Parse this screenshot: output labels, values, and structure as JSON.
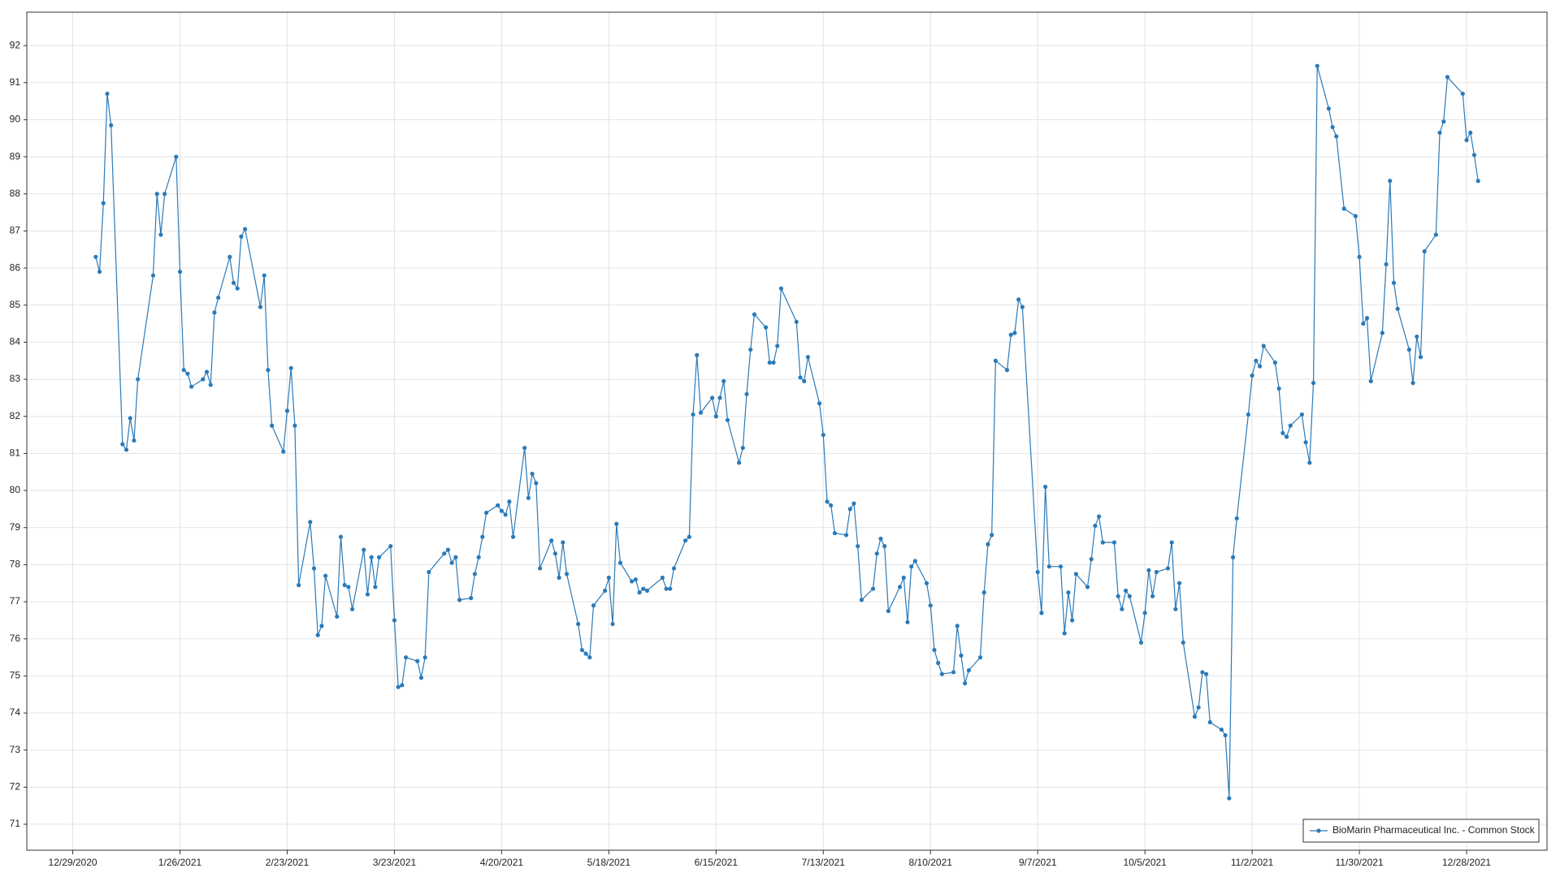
{
  "chart_data": {
    "type": "line",
    "x": [
      "1/4/2021",
      "1/5/2021",
      "1/6/2021",
      "1/7/2021",
      "1/8/2021",
      "1/11/2021",
      "1/12/2021",
      "1/13/2021",
      "1/14/2021",
      "1/15/2021",
      "1/19/2021",
      "1/20/2021",
      "1/21/2021",
      "1/22/2021",
      "1/25/2021",
      "1/26/2021",
      "1/27/2021",
      "1/28/2021",
      "1/29/2021",
      "2/1/2021",
      "2/2/2021",
      "2/3/2021",
      "2/4/2021",
      "2/5/2021",
      "2/8/2021",
      "2/9/2021",
      "2/10/2021",
      "2/11/2021",
      "2/12/2021",
      "2/16/2021",
      "2/17/2021",
      "2/18/2021",
      "2/19/2021",
      "2/22/2021",
      "2/23/2021",
      "2/24/2021",
      "2/25/2021",
      "2/26/2021",
      "3/1/2021",
      "3/2/2021",
      "3/3/2021",
      "3/4/2021",
      "3/5/2021",
      "3/8/2021",
      "3/9/2021",
      "3/10/2021",
      "3/11/2021",
      "3/12/2021",
      "3/15/2021",
      "3/16/2021",
      "3/17/2021",
      "3/18/2021",
      "3/19/2021",
      "3/22/2021",
      "3/23/2021",
      "3/24/2021",
      "3/25/2021",
      "3/26/2021",
      "3/29/2021",
      "3/30/2021",
      "3/31/2021",
      "4/1/2021",
      "4/5/2021",
      "4/6/2021",
      "4/7/2021",
      "4/8/2021",
      "4/9/2021",
      "4/12/2021",
      "4/13/2021",
      "4/14/2021",
      "4/15/2021",
      "4/16/2021",
      "4/19/2021",
      "4/20/2021",
      "4/21/2021",
      "4/22/2021",
      "4/23/2021",
      "4/26/2021",
      "4/27/2021",
      "4/28/2021",
      "4/29/2021",
      "4/30/2021",
      "5/3/2021",
      "5/4/2021",
      "5/5/2021",
      "5/6/2021",
      "5/7/2021",
      "5/10/2021",
      "5/11/2021",
      "5/12/2021",
      "5/13/2021",
      "5/14/2021",
      "5/17/2021",
      "5/18/2021",
      "5/19/2021",
      "5/20/2021",
      "5/21/2021",
      "5/24/2021",
      "5/25/2021",
      "5/26/2021",
      "5/27/2021",
      "5/28/2021",
      "6/1/2021",
      "6/2/2021",
      "6/3/2021",
      "6/4/2021",
      "6/7/2021",
      "6/8/2021",
      "6/9/2021",
      "6/10/2021",
      "6/11/2021",
      "6/14/2021",
      "6/15/2021",
      "6/16/2021",
      "6/17/2021",
      "6/18/2021",
      "6/21/2021",
      "6/22/2021",
      "6/23/2021",
      "6/24/2021",
      "6/25/2021",
      "6/28/2021",
      "6/29/2021",
      "6/30/2021",
      "7/1/2021",
      "7/2/2021",
      "7/6/2021",
      "7/7/2021",
      "7/8/2021",
      "7/9/2021",
      "7/12/2021",
      "7/13/2021",
      "7/14/2021",
      "7/15/2021",
      "7/16/2021",
      "7/19/2021",
      "7/20/2021",
      "7/21/2021",
      "7/22/2021",
      "7/23/2021",
      "7/26/2021",
      "7/27/2021",
      "7/28/2021",
      "7/29/2021",
      "7/30/2021",
      "8/2/2021",
      "8/3/2021",
      "8/4/2021",
      "8/5/2021",
      "8/6/2021",
      "8/9/2021",
      "8/10/2021",
      "8/11/2021",
      "8/12/2021",
      "8/13/2021",
      "8/16/2021",
      "8/17/2021",
      "8/18/2021",
      "8/19/2021",
      "8/20/2021",
      "8/23/2021",
      "8/24/2021",
      "8/25/2021",
      "8/26/2021",
      "8/27/2021",
      "8/30/2021",
      "8/31/2021",
      "9/1/2021",
      "9/2/2021",
      "9/3/2021",
      "9/7/2021",
      "9/8/2021",
      "9/9/2021",
      "9/10/2021",
      "9/13/2021",
      "9/14/2021",
      "9/15/2021",
      "9/16/2021",
      "9/17/2021",
      "9/20/2021",
      "9/21/2021",
      "9/22/2021",
      "9/23/2021",
      "9/24/2021",
      "9/27/2021",
      "9/28/2021",
      "9/29/2021",
      "9/30/2021",
      "10/1/2021",
      "10/4/2021",
      "10/5/2021",
      "10/6/2021",
      "10/7/2021",
      "10/8/2021",
      "10/11/2021",
      "10/12/2021",
      "10/13/2021",
      "10/14/2021",
      "10/15/2021",
      "10/18/2021",
      "10/19/2021",
      "10/20/2021",
      "10/21/2021",
      "10/22/2021",
      "10/25/2021",
      "10/26/2021",
      "10/27/2021",
      "10/28/2021",
      "10/29/2021",
      "11/1/2021",
      "11/2/2021",
      "11/3/2021",
      "11/4/2021",
      "11/5/2021",
      "11/8/2021",
      "11/9/2021",
      "11/10/2021",
      "11/11/2021",
      "11/12/2021",
      "11/15/2021",
      "11/16/2021",
      "11/17/2021",
      "11/18/2021",
      "11/19/2021",
      "11/22/2021",
      "11/23/2021",
      "11/24/2021",
      "11/26/2021",
      "11/29/2021",
      "11/30/2021",
      "12/1/2021",
      "12/2/2021",
      "12/3/2021",
      "12/6/2021",
      "12/7/2021",
      "12/8/2021",
      "12/9/2021",
      "12/10/2021",
      "12/13/2021",
      "12/14/2021",
      "12/15/2021",
      "12/16/2021",
      "12/17/2021",
      "12/20/2021",
      "12/21/2021",
      "12/22/2021",
      "12/23/2021",
      "12/27/2021",
      "12/28/2021",
      "12/29/2021",
      "12/30/2021",
      "12/31/2021"
    ],
    "series": [
      {
        "name": "BioMarin Pharmaceutical Inc. - Common Stock",
        "color": "#2a7ab9",
        "values": [
          86.3,
          85.9,
          87.75,
          90.7,
          89.85,
          81.25,
          81.1,
          81.95,
          81.35,
          83.0,
          85.8,
          88.0,
          86.9,
          88.0,
          89.0,
          85.9,
          83.25,
          83.15,
          82.8,
          83.0,
          83.2,
          82.85,
          84.8,
          85.2,
          86.3,
          85.6,
          85.45,
          86.85,
          87.05,
          84.95,
          85.8,
          83.25,
          81.75,
          81.05,
          82.15,
          83.3,
          81.75,
          77.45,
          79.15,
          77.9,
          76.1,
          76.35,
          77.7,
          76.6,
          78.75,
          77.45,
          77.4,
          76.8,
          78.4,
          77.2,
          78.2,
          77.4,
          78.2,
          78.5,
          76.5,
          74.7,
          74.75,
          75.5,
          75.4,
          74.95,
          75.5,
          77.8,
          78.3,
          78.4,
          78.05,
          78.2,
          77.05,
          77.1,
          77.75,
          78.2,
          78.75,
          79.4,
          79.6,
          79.45,
          79.35,
          79.7,
          78.75,
          81.15,
          79.8,
          80.45,
          80.2,
          77.9,
          78.65,
          78.3,
          77.65,
          78.6,
          77.75,
          76.4,
          75.7,
          75.6,
          75.5,
          76.9,
          77.3,
          77.65,
          76.4,
          79.1,
          78.05,
          77.55,
          77.6,
          77.25,
          77.35,
          77.3,
          77.65,
          77.35,
          77.35,
          77.9,
          78.65,
          78.75,
          82.05,
          83.65,
          82.1,
          82.5,
          82.0,
          82.5,
          82.95,
          81.9,
          80.75,
          81.15,
          82.6,
          83.8,
          84.75,
          84.4,
          83.45,
          83.45,
          83.9,
          85.45,
          84.55,
          83.05,
          82.95,
          83.6,
          82.35,
          81.5,
          79.7,
          79.6,
          78.85,
          78.8,
          79.5,
          79.65,
          78.5,
          77.05,
          77.35,
          78.3,
          78.7,
          78.5,
          76.75,
          77.4,
          77.65,
          76.45,
          77.95,
          78.1,
          77.5,
          76.9,
          75.7,
          75.35,
          75.05,
          75.1,
          76.35,
          75.55,
          74.8,
          75.15,
          75.5,
          77.25,
          78.55,
          78.8,
          83.5,
          83.25,
          84.2,
          84.25,
          85.15,
          84.95,
          77.8,
          76.7,
          80.1,
          77.95,
          77.95,
          76.15,
          77.25,
          76.5,
          77.75,
          77.4,
          78.15,
          79.05,
          79.3,
          78.6,
          78.6,
          77.15,
          76.8,
          77.3,
          77.15,
          75.9,
          76.7,
          77.85,
          77.15,
          77.8,
          77.9,
          78.6,
          76.8,
          77.5,
          75.9,
          73.9,
          74.15,
          75.1,
          75.05,
          73.75,
          73.55,
          73.4,
          71.7,
          78.2,
          79.25,
          82.05,
          83.1,
          83.5,
          83.35,
          83.9,
          83.45,
          82.75,
          81.55,
          81.45,
          81.75,
          82.05,
          81.3,
          80.75,
          82.9,
          91.45,
          90.3,
          89.8,
          89.55,
          87.6,
          87.4,
          86.3,
          84.5,
          84.65,
          82.95,
          84.25,
          86.1,
          88.35,
          85.6,
          84.9,
          83.8,
          82.9,
          84.15,
          83.6,
          86.45,
          86.9,
          89.65,
          89.95,
          91.15,
          90.7,
          89.45,
          89.65,
          89.05,
          88.35
        ]
      }
    ],
    "xlim": [
      "12/17/2020",
      "1/18/2022"
    ],
    "xticks": [
      "12/29/2020",
      "1/26/2021",
      "2/23/2021",
      "3/23/2021",
      "4/20/2021",
      "5/18/2021",
      "6/15/2021",
      "7/13/2021",
      "8/10/2021",
      "9/7/2021",
      "10/5/2021",
      "11/2/2021",
      "11/30/2021",
      "12/28/2021"
    ],
    "ylim": [
      70.3,
      92.9
    ],
    "yticks": [
      71,
      72,
      73,
      74,
      75,
      76,
      77,
      78,
      79,
      80,
      81,
      82,
      83,
      84,
      85,
      86,
      87,
      88,
      89,
      90,
      91,
      92
    ],
    "grid": true,
    "legend": "lower right"
  }
}
